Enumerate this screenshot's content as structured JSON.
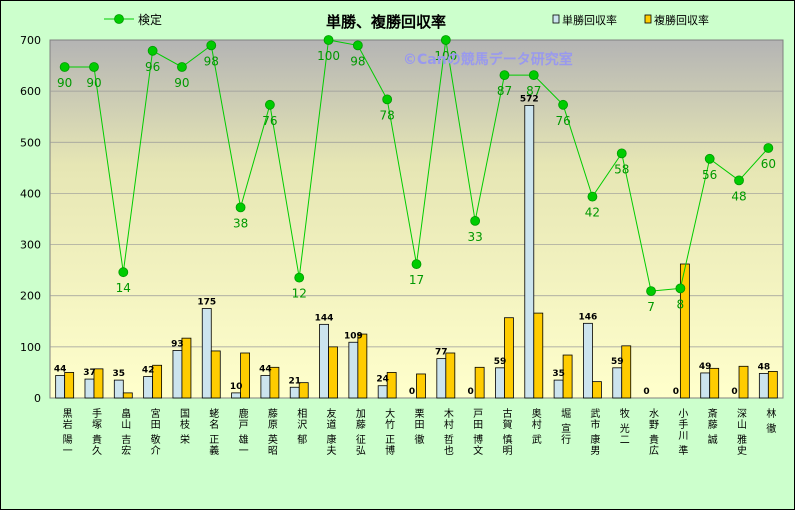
{
  "chart_data": {
    "type": "bar",
    "title": "単勝、複勝回収率",
    "watermark": "©Canの競馬データ研究室",
    "ylim": [
      0,
      700
    ],
    "yticks": [
      0,
      100,
      200,
      300,
      400,
      500,
      600,
      700
    ],
    "grid": true,
    "legend_position": "top",
    "categories": [
      "黒岩 陽一",
      "手塚 貴久",
      "畠山 吉宏",
      "宮田 敬介",
      "国枝 栄",
      "蛯名 正義",
      "鹿戸 雄一",
      "藤原 英昭",
      "相沢 郁",
      "友道 康夫",
      "加藤 征弘",
      "大竹 正博",
      "栗田 徹",
      "木村 哲也",
      "戸田 博文",
      "古賀 慎明",
      "奥村 武",
      "堀 宣行",
      "武市 康男",
      "牧 光二",
      "水野 貴広",
      "小手川 準",
      "斎藤 誠",
      "深山 雅史",
      "林 徹"
    ],
    "series": [
      {
        "name": "単勝回収率",
        "kind": "bar",
        "color": "#cce4ee",
        "values": [
          44,
          37,
          35,
          42,
          93,
          175,
          10,
          44,
          21,
          144,
          109,
          24,
          0,
          77,
          0,
          59,
          572,
          35,
          146,
          59,
          0,
          0,
          49,
          0,
          48
        ]
      },
      {
        "name": "複勝回収率",
        "kind": "bar",
        "color": "#ffcc00",
        "values": [
          50,
          57,
          10,
          64,
          117,
          92,
          88,
          60,
          30,
          100,
          125,
          50,
          47,
          88,
          60,
          157,
          166,
          84,
          32,
          102,
          0,
          262,
          58,
          62,
          52
        ]
      },
      {
        "name": "検定",
        "kind": "line",
        "color": "#00aa00",
        "values": [
          90,
          90,
          14,
          96,
          90,
          98,
          38,
          76,
          12,
          100,
          98,
          78,
          17,
          100,
          33,
          87,
          87,
          76,
          42,
          58,
          7,
          8,
          56,
          48,
          60
        ]
      }
    ]
  }
}
